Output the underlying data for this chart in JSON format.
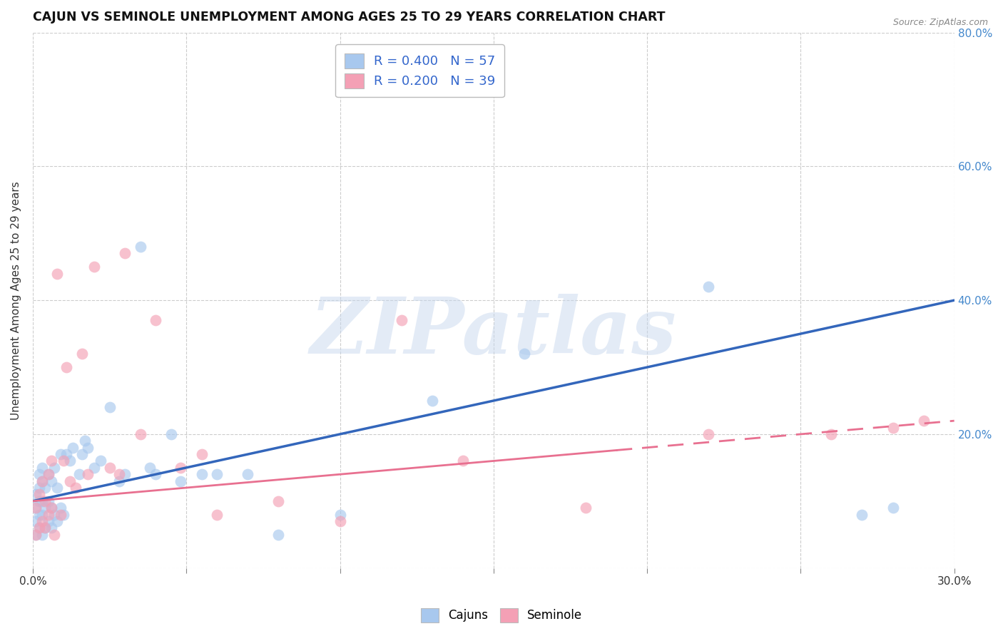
{
  "title": "CAJUN VS SEMINOLE UNEMPLOYMENT AMONG AGES 25 TO 29 YEARS CORRELATION CHART",
  "source": "Source: ZipAtlas.com",
  "ylabel": "Unemployment Among Ages 25 to 29 years",
  "xlim": [
    0.0,
    0.3
  ],
  "ylim": [
    0.0,
    0.8
  ],
  "cajun_R": "0.400",
  "cajun_N": "57",
  "seminole_R": "0.200",
  "seminole_N": "39",
  "cajun_color": "#A8C8EE",
  "seminole_color": "#F4A0B5",
  "trend_cajun_color": "#3366BB",
  "trend_seminole_color": "#E87090",
  "background_color": "#FFFFFF",
  "grid_color": "#CCCCCC",
  "title_fontsize": 12.5,
  "label_fontsize": 11,
  "tick_color_right": "#4488CC",
  "tick_color_bottom": "#333333",
  "watermark_text": "ZIPatlas",
  "cajun_trend_x0": 0.0,
  "cajun_trend_y0": 0.1,
  "cajun_trend_x1": 0.3,
  "cajun_trend_y1": 0.4,
  "seminole_trend_x0": 0.0,
  "seminole_trend_y0": 0.1,
  "seminole_trend_x1": 0.3,
  "seminole_trend_y1": 0.22,
  "cajun_x": [
    0.001,
    0.001,
    0.001,
    0.001,
    0.002,
    0.002,
    0.002,
    0.002,
    0.002,
    0.003,
    0.003,
    0.003,
    0.003,
    0.003,
    0.004,
    0.004,
    0.004,
    0.005,
    0.005,
    0.005,
    0.006,
    0.006,
    0.006,
    0.007,
    0.007,
    0.008,
    0.008,
    0.009,
    0.009,
    0.01,
    0.011,
    0.012,
    0.013,
    0.015,
    0.016,
    0.017,
    0.018,
    0.02,
    0.022,
    0.025,
    0.028,
    0.03,
    0.035,
    0.038,
    0.04,
    0.045,
    0.048,
    0.055,
    0.06,
    0.07,
    0.08,
    0.1,
    0.13,
    0.16,
    0.22,
    0.27,
    0.28
  ],
  "cajun_y": [
    0.05,
    0.07,
    0.09,
    0.11,
    0.06,
    0.08,
    0.1,
    0.12,
    0.14,
    0.05,
    0.08,
    0.1,
    0.13,
    0.15,
    0.06,
    0.09,
    0.12,
    0.07,
    0.1,
    0.14,
    0.06,
    0.09,
    0.13,
    0.08,
    0.15,
    0.07,
    0.12,
    0.09,
    0.17,
    0.08,
    0.17,
    0.16,
    0.18,
    0.14,
    0.17,
    0.19,
    0.18,
    0.15,
    0.16,
    0.24,
    0.13,
    0.14,
    0.48,
    0.15,
    0.14,
    0.2,
    0.13,
    0.14,
    0.14,
    0.14,
    0.05,
    0.08,
    0.25,
    0.32,
    0.42,
    0.08,
    0.09
  ],
  "seminole_x": [
    0.001,
    0.001,
    0.002,
    0.002,
    0.003,
    0.003,
    0.004,
    0.004,
    0.005,
    0.005,
    0.006,
    0.006,
    0.007,
    0.008,
    0.009,
    0.01,
    0.011,
    0.012,
    0.014,
    0.016,
    0.018,
    0.02,
    0.025,
    0.028,
    0.03,
    0.035,
    0.04,
    0.048,
    0.055,
    0.06,
    0.08,
    0.1,
    0.12,
    0.14,
    0.18,
    0.22,
    0.26,
    0.28,
    0.29
  ],
  "seminole_y": [
    0.05,
    0.09,
    0.06,
    0.11,
    0.07,
    0.13,
    0.06,
    0.1,
    0.08,
    0.14,
    0.09,
    0.16,
    0.05,
    0.44,
    0.08,
    0.16,
    0.3,
    0.13,
    0.12,
    0.32,
    0.14,
    0.45,
    0.15,
    0.14,
    0.47,
    0.2,
    0.37,
    0.15,
    0.17,
    0.08,
    0.1,
    0.07,
    0.37,
    0.16,
    0.09,
    0.2,
    0.2,
    0.21,
    0.22
  ]
}
